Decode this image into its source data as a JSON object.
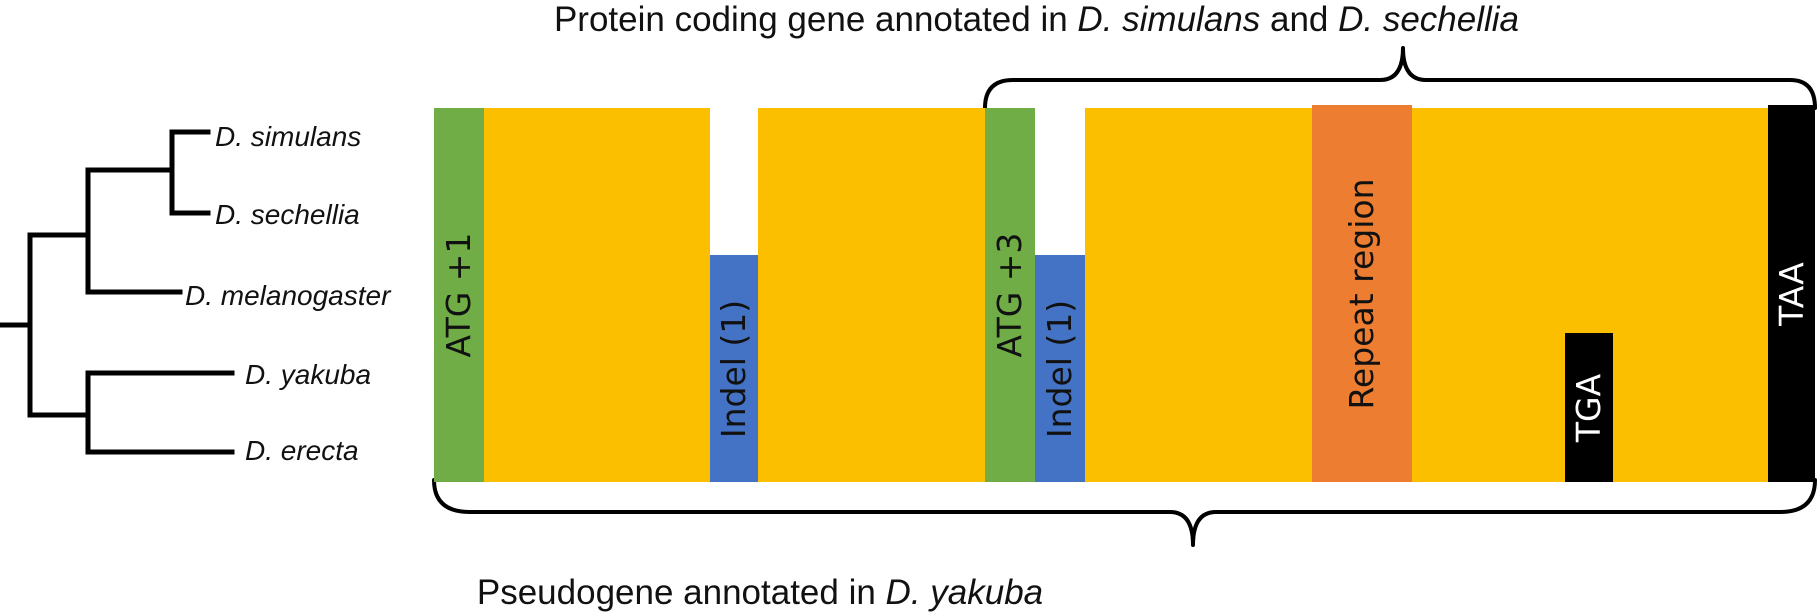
{
  "captions": {
    "top": {
      "before": "Protein coding gene annotated in ",
      "species1": "D. simulans",
      "middle": " and ",
      "species2": "D. sechellia"
    },
    "bottom": {
      "before": "Pseudogene annotated in ",
      "species": "D. yakuba"
    }
  },
  "taxa": [
    "D. simulans",
    "D. sechellia",
    "D. melanogaster",
    "D. yakuba",
    "D. erecta"
  ],
  "segments": {
    "atg1": "ATG +1",
    "indel_a": "Indel (1)",
    "atg3": "ATG +3",
    "indel_b": "Indel (1)",
    "repeat": "Repeat region",
    "tga": "TGA",
    "taa": "TAA"
  },
  "colors": {
    "coding": "#fbbf00",
    "atg": "#70ad47",
    "indel": "#4472c4",
    "repeat": "#ed7d31",
    "stop": "#000000"
  }
}
